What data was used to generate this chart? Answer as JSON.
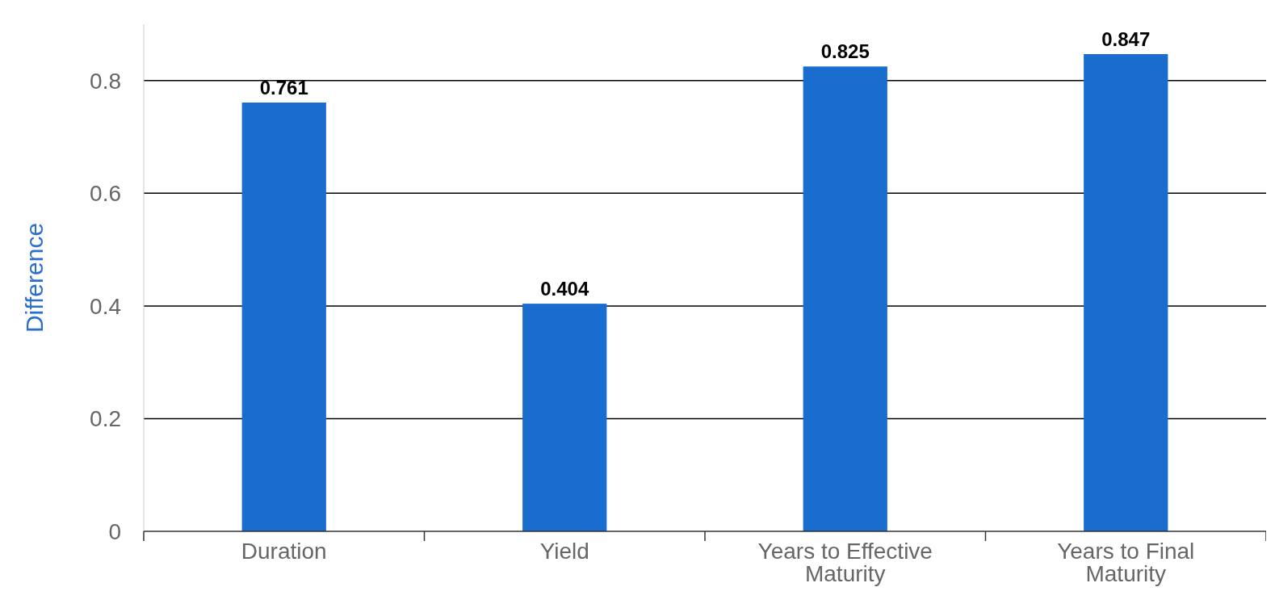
{
  "chart_data": {
    "type": "bar",
    "ylabel": "Difference",
    "categories": [
      "Duration",
      "Yield",
      "Years to Effective Maturity",
      "Years to Final Maturity"
    ],
    "values": [
      0.761,
      0.404,
      0.825,
      0.847
    ],
    "color": "#1a6ccf",
    "ylim": [
      0,
      0.9
    ],
    "yticks": [
      0,
      0.2,
      0.4,
      0.6,
      0.8
    ],
    "grid": "y",
    "data_labels": true
  }
}
